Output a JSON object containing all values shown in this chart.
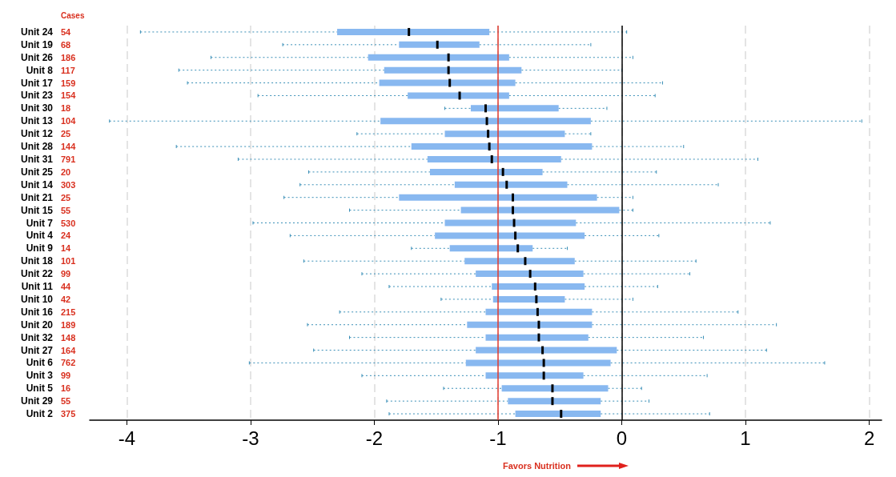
{
  "chart_data": {
    "type": "box",
    "orientation": "horizontal",
    "xlabel": "Favors Nutrition",
    "y2label": "Cases",
    "categories": [
      "Unit 24",
      "Unit 19",
      "Unit 26",
      "Unit 8",
      "Unit 17",
      "Unit 23",
      "Unit 30",
      "Unit 13",
      "Unit 12",
      "Unit 28",
      "Unit 31",
      "Unit 25",
      "Unit 14",
      "Unit 21",
      "Unit 15",
      "Unit 7",
      "Unit 4",
      "Unit 9",
      "Unit 18",
      "Unit 22",
      "Unit 11",
      "Unit 10",
      "Unit 16",
      "Unit 20",
      "Unit 32",
      "Unit 27",
      "Unit 6",
      "Unit 3",
      "Unit 5",
      "Unit 29",
      "Unit 2"
    ],
    "y2_categories": [
      "54",
      "68",
      "186",
      "117",
      "159",
      "154",
      "18",
      "104",
      "25",
      "144",
      "791",
      "20",
      "303",
      "25",
      "55",
      "530",
      "24",
      "14",
      "101",
      "99",
      "44",
      "42",
      "215",
      "189",
      "148",
      "164",
      "762",
      "99",
      "16",
      "55",
      "375"
    ],
    "xlim": [
      -4.3,
      2.1
    ],
    "xticks": [
      -4,
      -3,
      -2,
      -1,
      0,
      1,
      2
    ],
    "grid": "x",
    "ref_lines": [
      {
        "axis": "x",
        "value": -1,
        "color": "#e0382c"
      },
      {
        "axis": "x",
        "value": 0,
        "color": "#000000"
      }
    ],
    "series": [
      {
        "color": "#88b8f0",
        "boxes": [
          {
            "low": -3.89,
            "q1": -2.3,
            "median": -1.72,
            "q3": -1.07,
            "high": 0.04
          },
          {
            "low": -2.74,
            "q1": -1.8,
            "median": -1.49,
            "q3": -1.15,
            "high": -0.25
          },
          {
            "low": -3.32,
            "q1": -2.05,
            "median": -1.4,
            "q3": -0.91,
            "high": 0.09
          },
          {
            "low": -3.58,
            "q1": -1.92,
            "median": -1.4,
            "q3": -0.81,
            "high": 0.0
          },
          {
            "low": -3.51,
            "q1": -1.96,
            "median": -1.39,
            "q3": -0.86,
            "high": 0.33
          },
          {
            "low": -2.94,
            "q1": -1.73,
            "median": -1.31,
            "q3": -0.91,
            "high": 0.27
          },
          {
            "low": -1.43,
            "q1": -1.22,
            "median": -1.1,
            "q3": -0.51,
            "high": -0.12
          },
          {
            "low": -4.14,
            "q1": -1.95,
            "median": -1.09,
            "q3": -0.25,
            "high": 1.94
          },
          {
            "low": -2.14,
            "q1": -1.43,
            "median": -1.08,
            "q3": -0.46,
            "high": -0.25
          },
          {
            "low": -3.6,
            "q1": -1.7,
            "median": -1.07,
            "q3": -0.24,
            "high": 0.5
          },
          {
            "low": -3.1,
            "q1": -1.57,
            "median": -1.05,
            "q3": -0.49,
            "high": 1.1
          },
          {
            "low": -2.53,
            "q1": -1.55,
            "median": -0.96,
            "q3": -0.64,
            "high": 0.28
          },
          {
            "low": -2.6,
            "q1": -1.35,
            "median": -0.93,
            "q3": -0.44,
            "high": 0.78
          },
          {
            "low": -2.73,
            "q1": -1.8,
            "median": -0.88,
            "q3": -0.2,
            "high": 0.09
          },
          {
            "low": -2.2,
            "q1": -1.3,
            "median": -0.88,
            "q3": -0.02,
            "high": 0.09
          },
          {
            "low": -2.98,
            "q1": -1.43,
            "median": -0.87,
            "q3": -0.37,
            "high": 1.2
          },
          {
            "low": -2.68,
            "q1": -1.51,
            "median": -0.86,
            "q3": -0.3,
            "high": 0.3
          },
          {
            "low": -1.7,
            "q1": -1.39,
            "median": -0.84,
            "q3": -0.72,
            "high": -0.44
          },
          {
            "low": -2.57,
            "q1": -1.27,
            "median": -0.78,
            "q3": -0.38,
            "high": 0.6
          },
          {
            "low": -2.1,
            "q1": -1.18,
            "median": -0.74,
            "q3": -0.31,
            "high": 0.55
          },
          {
            "low": -1.88,
            "q1": -1.05,
            "median": -0.7,
            "q3": -0.3,
            "high": 0.29
          },
          {
            "low": -1.46,
            "q1": -1.04,
            "median": -0.69,
            "q3": -0.46,
            "high": 0.09
          },
          {
            "low": -2.28,
            "q1": -1.1,
            "median": -0.68,
            "q3": -0.24,
            "high": 0.94
          },
          {
            "low": -2.54,
            "q1": -1.25,
            "median": -0.67,
            "q3": -0.24,
            "high": 1.25
          },
          {
            "low": -2.2,
            "q1": -1.1,
            "median": -0.67,
            "q3": -0.27,
            "high": 0.66
          },
          {
            "low": -2.49,
            "q1": -1.18,
            "median": -0.64,
            "q3": -0.04,
            "high": 1.17
          },
          {
            "low": -3.01,
            "q1": -1.26,
            "median": -0.63,
            "q3": -0.09,
            "high": 1.64
          },
          {
            "low": -2.1,
            "q1": -1.1,
            "median": -0.63,
            "q3": -0.31,
            "high": 0.69
          },
          {
            "low": -1.44,
            "q1": -0.97,
            "median": -0.56,
            "q3": -0.11,
            "high": 0.16
          },
          {
            "low": -1.9,
            "q1": -0.92,
            "median": -0.56,
            "q3": -0.17,
            "high": 0.22
          },
          {
            "low": -1.88,
            "q1": -0.86,
            "median": -0.49,
            "q3": -0.17,
            "high": 0.71
          }
        ]
      }
    ]
  }
}
